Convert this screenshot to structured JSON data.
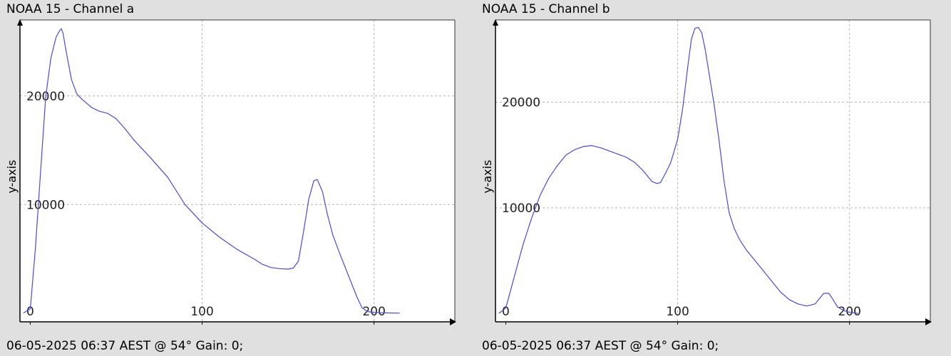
{
  "chart_data": [
    {
      "type": "line",
      "title": "NOAA 15 - Channel a",
      "footer": "06-05-2025 06:37 AEST @ 54° Gain: 0;",
      "xlabel": "",
      "ylabel": "y-axis",
      "xlim": [
        -6,
        247
      ],
      "ylim": [
        -800,
        27000
      ],
      "x_ticks": [
        0,
        100,
        200
      ],
      "y_ticks": [
        10000,
        20000
      ],
      "x_tick_labels": [
        "0",
        "100",
        "200"
      ],
      "y_tick_labels": [
        "10000",
        "20000"
      ],
      "grid": true,
      "series": [
        {
          "color": "#4a4adf",
          "x": [
            -4,
            0,
            3,
            6,
            9,
            12,
            15,
            17,
            18,
            19,
            21,
            24,
            27,
            30,
            33,
            36,
            40,
            45,
            50,
            55,
            60,
            70,
            80,
            90,
            100,
            110,
            120,
            130,
            135,
            140,
            145,
            150,
            153,
            156,
            159,
            162,
            165,
            167,
            170,
            173,
            176,
            180,
            185,
            190,
            193,
            196,
            200,
            205,
            210,
            215
          ],
          "y": [
            0,
            400,
            6000,
            13000,
            20000,
            23500,
            25400,
            26000,
            26200,
            25800,
            24000,
            21500,
            20200,
            19700,
            19300,
            18900,
            18600,
            18400,
            17900,
            17000,
            16000,
            14300,
            12500,
            10000,
            8300,
            7000,
            5900,
            5000,
            4500,
            4200,
            4100,
            4050,
            4150,
            4800,
            7500,
            10500,
            12200,
            12300,
            11200,
            9000,
            7200,
            5500,
            3500,
            1500,
            500,
            150,
            50,
            30,
            10,
            0
          ]
        }
      ]
    },
    {
      "type": "line",
      "title": "NOAA 15 - Channel b",
      "footer": "06-05-2025 06:37 AEST @ 54° Gain: 0;",
      "xlabel": "",
      "ylabel": "y-axis",
      "xlim": [
        -6,
        247
      ],
      "ylim": [
        -800,
        27800
      ],
      "x_ticks": [
        0,
        100,
        200
      ],
      "y_ticks": [
        10000,
        20000
      ],
      "x_tick_labels": [
        "0",
        "100",
        "200"
      ],
      "y_tick_labels": [
        "10000",
        "20000"
      ],
      "grid": true,
      "series": [
        {
          "color": "#4a4adf",
          "x": [
            -4,
            0,
            5,
            10,
            15,
            20,
            25,
            30,
            35,
            40,
            45,
            50,
            55,
            60,
            65,
            70,
            75,
            80,
            85,
            88,
            90,
            93,
            96,
            100,
            103,
            106,
            108,
            110,
            112,
            114,
            116,
            118,
            121,
            124,
            127,
            130,
            133,
            136,
            140,
            145,
            150,
            155,
            160,
            165,
            170,
            175,
            180,
            183,
            185,
            188,
            190,
            193,
            197,
            200,
            205
          ],
          "y": [
            0,
            500,
            3500,
            6500,
            9000,
            11200,
            12800,
            14000,
            15000,
            15500,
            15800,
            15900,
            15700,
            15400,
            15100,
            14800,
            14300,
            13500,
            12500,
            12300,
            12400,
            13300,
            14300,
            16500,
            19500,
            23500,
            26000,
            27000,
            27100,
            26600,
            25000,
            23000,
            20000,
            16500,
            12500,
            9500,
            8000,
            7000,
            6000,
            5000,
            4000,
            3000,
            2000,
            1300,
            900,
            700,
            900,
            1500,
            1900,
            1900,
            1400,
            600,
            250,
            100,
            0
          ]
        }
      ]
    }
  ]
}
